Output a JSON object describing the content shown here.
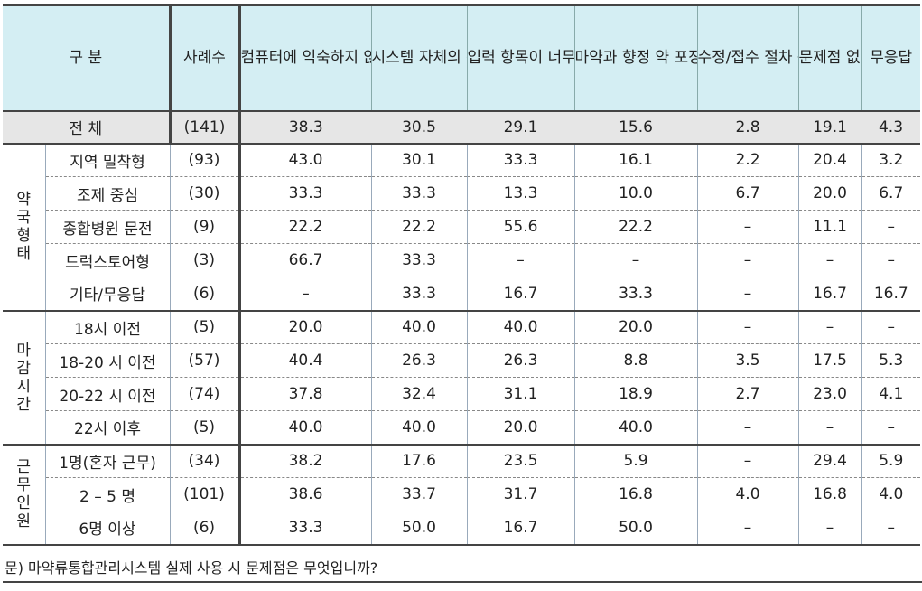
{
  "header": {
    "category": "구 분",
    "count": "사례수",
    "columns": [
      "컴퓨터에 익숙하지 않아 누락/착오로 행정처분 걱정",
      "시스템 자체의 문제점이 많음",
      "입력 항목이 너무 많고 시간소요 많아 부담",
      "마약과 향정 약 포장 비규격화로 입력이 불편",
      "수정/접수 절차 등 복잡하고 어려움",
      "문제점 없음",
      "무응답"
    ]
  },
  "total": {
    "label": "전 체",
    "count": "(141)",
    "values": [
      "38.3",
      "30.5",
      "29.1",
      "15.6",
      "2.8",
      "19.1",
      "4.3"
    ]
  },
  "groups": [
    {
      "label": "약국 형태",
      "rows": [
        {
          "label": "지역 밀착형",
          "count": "(93)",
          "values": [
            "43.0",
            "30.1",
            "33.3",
            "16.1",
            "2.2",
            "20.4",
            "3.2"
          ]
        },
        {
          "label": "조제 중심",
          "count": "(30)",
          "values": [
            "33.3",
            "33.3",
            "13.3",
            "10.0",
            "6.7",
            "20.0",
            "6.7"
          ]
        },
        {
          "label": "종합병원 문전",
          "count": "(9)",
          "values": [
            "22.2",
            "22.2",
            "55.6",
            "22.2",
            "–",
            "11.1",
            "–"
          ]
        },
        {
          "label": "드럭스토어형",
          "count": "(3)",
          "values": [
            "66.7",
            "33.3",
            "–",
            "–",
            "–",
            "–",
            "–"
          ]
        },
        {
          "label": "기타/무응답",
          "count": "(6)",
          "values": [
            "–",
            "33.3",
            "16.7",
            "33.3",
            "–",
            "16.7",
            "16.7"
          ]
        }
      ]
    },
    {
      "label": "마감 시간",
      "rows": [
        {
          "label": "18시 이전",
          "count": "(5)",
          "values": [
            "20.0",
            "40.0",
            "40.0",
            "20.0",
            "–",
            "–",
            "–"
          ]
        },
        {
          "label": "18-20 시 이전",
          "count": "(57)",
          "values": [
            "40.4",
            "26.3",
            "26.3",
            "8.8",
            "3.5",
            "17.5",
            "5.3"
          ]
        },
        {
          "label": "20-22 시 이전",
          "count": "(74)",
          "values": [
            "37.8",
            "32.4",
            "31.1",
            "18.9",
            "2.7",
            "23.0",
            "4.1"
          ]
        },
        {
          "label": "22시 이후",
          "count": "(5)",
          "values": [
            "40.0",
            "40.0",
            "20.0",
            "40.0",
            "–",
            "–",
            "–"
          ]
        }
      ]
    },
    {
      "label": "근무 인원",
      "rows": [
        {
          "label": "1명(혼자 근무)",
          "count": "(34)",
          "values": [
            "38.2",
            "17.6",
            "23.5",
            "5.9",
            "–",
            "29.4",
            "5.9"
          ]
        },
        {
          "label": "2 – 5 명",
          "count": "(101)",
          "values": [
            "38.6",
            "33.7",
            "31.7",
            "16.8",
            "4.0",
            "16.8",
            "4.0"
          ]
        },
        {
          "label": "6명 이상",
          "count": "(6)",
          "values": [
            "33.3",
            "50.0",
            "16.7",
            "50.0",
            "–",
            "–",
            "–"
          ]
        }
      ]
    }
  ],
  "question": "문) 마약류통합관리시스템 실제 사용 시 문제점은 무엇입니까?",
  "colors": {
    "header_bg": "#d4eef3",
    "total_bg": "#e6e6e6",
    "border_dark": "#444444"
  }
}
